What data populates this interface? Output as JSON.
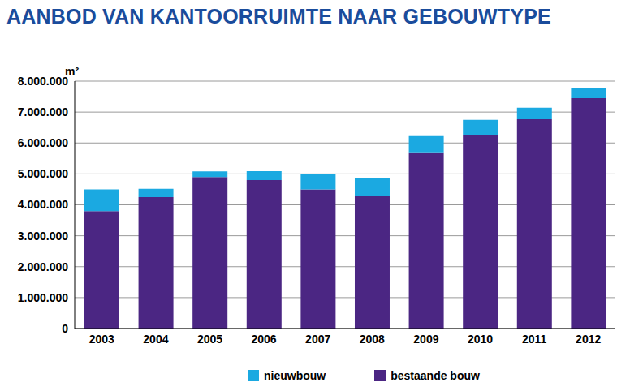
{
  "chart_data": {
    "type": "bar",
    "title": "AANBOD VAN KANTOORRUIMTE NAAR GEBOUWTYPE",
    "y_label": "m²",
    "categories": [
      "2003",
      "2004",
      "2005",
      "2006",
      "2007",
      "2008",
      "2009",
      "2010",
      "2011",
      "2012"
    ],
    "series": [
      {
        "name": "bestaande bouw",
        "color": "#4b2683",
        "values": [
          3800000,
          4250000,
          4900000,
          4800000,
          4500000,
          4300000,
          5700000,
          6270000,
          6770000,
          7450000
        ]
      },
      {
        "name": "nieuwbouw",
        "color": "#1ba9e1",
        "values": [
          700000,
          270000,
          180000,
          290000,
          500000,
          560000,
          520000,
          480000,
          370000,
          320000
        ]
      }
    ],
    "stacked": true,
    "ylim": [
      0,
      8000000
    ],
    "yticks": [
      0,
      {
        "value": 1000000,
        "label": "1.000.000"
      },
      {
        "value": 2000000,
        "label": "2.000.000"
      },
      {
        "value": 3000000,
        "label": "3.000.000"
      },
      {
        "value": 4000000,
        "label": "4.000.000"
      },
      {
        "value": 5000000,
        "label": "5.000.000"
      },
      {
        "value": 6000000,
        "label": "6.000.000"
      },
      {
        "value": 7000000,
        "label": "7.000.000"
      },
      {
        "value": 8000000,
        "label": "8.000.000"
      }
    ],
    "grid": true,
    "legend": "bottom"
  }
}
